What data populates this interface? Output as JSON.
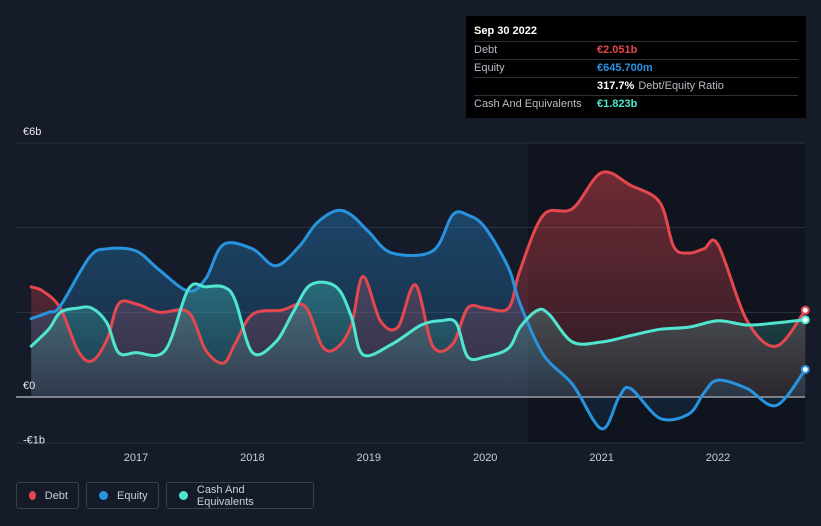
{
  "chart_data": {
    "type": "area",
    "title": "",
    "xlabel": "",
    "ylabel": "",
    "ylim": [
      -1.3,
      6
    ],
    "xlim": [
      2016.1,
      2022.75
    ],
    "y_tick_labels": [
      {
        "value": 6,
        "label": "€6b"
      },
      {
        "value": 0,
        "label": "€0"
      },
      {
        "value": -1,
        "label": "-€1b"
      }
    ],
    "x_tick_labels": [
      {
        "value": 2017,
        "label": "2017"
      },
      {
        "value": 2018,
        "label": "2018"
      },
      {
        "value": 2019,
        "label": "2019"
      },
      {
        "value": 2020,
        "label": "2020"
      },
      {
        "value": 2021,
        "label": "2021"
      },
      {
        "value": 2022,
        "label": "2022"
      }
    ],
    "gridlines": [
      6,
      4,
      2,
      0
    ],
    "series": [
      {
        "name": "Debt",
        "color": "#e5474e",
        "x": [
          2016.1,
          2016.2,
          2016.35,
          2016.5,
          2016.62,
          2016.75,
          2016.85,
          2017.0,
          2017.2,
          2017.45,
          2017.6,
          2017.75,
          2017.85,
          2018.0,
          2018.25,
          2018.45,
          2018.6,
          2018.72,
          2018.85,
          2018.95,
          2019.1,
          2019.25,
          2019.4,
          2019.55,
          2019.72,
          2019.85,
          2020.0,
          2020.2,
          2020.3,
          2020.5,
          2020.75,
          2021.0,
          2021.25,
          2021.5,
          2021.62,
          2021.75,
          2021.88,
          2022.0,
          2022.25,
          2022.5,
          2022.75
        ],
        "values": [
          2.6,
          2.5,
          2.1,
          1.1,
          0.85,
          1.35,
          2.2,
          2.2,
          2.0,
          2.0,
          1.1,
          0.8,
          1.25,
          1.95,
          2.05,
          2.15,
          1.2,
          1.15,
          1.7,
          2.85,
          1.8,
          1.65,
          2.65,
          1.2,
          1.25,
          2.1,
          2.1,
          2.1,
          3.0,
          4.3,
          4.45,
          5.3,
          5.0,
          4.6,
          3.55,
          3.4,
          3.5,
          3.6,
          1.8,
          1.2,
          2.05
        ]
      },
      {
        "name": "Equity",
        "color": "#2894e0",
        "x": [
          2016.1,
          2016.25,
          2016.35,
          2016.6,
          2016.75,
          2017.0,
          2017.2,
          2017.45,
          2017.6,
          2017.75,
          2018.0,
          2018.2,
          2018.4,
          2018.55,
          2018.72,
          2018.85,
          2019.0,
          2019.2,
          2019.55,
          2019.72,
          2019.85,
          2020.0,
          2020.2,
          2020.3,
          2020.5,
          2020.75,
          2021.0,
          2021.15,
          2021.25,
          2021.5,
          2021.75,
          2021.88,
          2022.0,
          2022.25,
          2022.5,
          2022.75
        ],
        "values": [
          1.85,
          2.0,
          2.15,
          3.3,
          3.5,
          3.45,
          3.0,
          2.5,
          2.8,
          3.6,
          3.5,
          3.1,
          3.55,
          4.1,
          4.4,
          4.3,
          3.9,
          3.4,
          3.45,
          4.3,
          4.3,
          4.0,
          3.05,
          2.2,
          1.0,
          0.3,
          -0.75,
          0.0,
          0.2,
          -0.5,
          -0.4,
          0.1,
          0.4,
          0.2,
          -0.2,
          0.65
        ]
      },
      {
        "name": "Cash And Equivalents",
        "color": "#4fe5cf",
        "x": [
          2016.1,
          2016.25,
          2016.35,
          2016.5,
          2016.62,
          2016.75,
          2016.85,
          2017.0,
          2017.25,
          2017.45,
          2017.6,
          2017.75,
          2017.85,
          2018.0,
          2018.2,
          2018.35,
          2018.5,
          2018.72,
          2018.85,
          2018.95,
          2019.2,
          2019.45,
          2019.62,
          2019.75,
          2019.85,
          2020.0,
          2020.2,
          2020.3,
          2020.45,
          2020.55,
          2020.75,
          2021.0,
          2021.25,
          2021.5,
          2021.75,
          2022.0,
          2022.25,
          2022.5,
          2022.75
        ],
        "values": [
          1.2,
          1.6,
          2.0,
          2.1,
          2.1,
          1.75,
          1.05,
          1.05,
          1.1,
          2.55,
          2.6,
          2.6,
          2.3,
          1.05,
          1.3,
          2.0,
          2.65,
          2.6,
          1.9,
          1.0,
          1.25,
          1.7,
          1.8,
          1.75,
          0.95,
          0.95,
          1.15,
          1.65,
          2.05,
          1.95,
          1.3,
          1.3,
          1.45,
          1.6,
          1.65,
          1.8,
          1.7,
          1.75,
          1.823
        ]
      }
    ]
  },
  "tooltip": {
    "date": "Sep 30 2022",
    "debt_label": "Debt",
    "debt_value": "€2.051b",
    "equity_label": "Equity",
    "equity_value": "€645.700m",
    "ratio_value": "317.7%",
    "ratio_label": "Debt/Equity Ratio",
    "cash_label": "Cash And Equivalents",
    "cash_value": "€1.823b"
  },
  "legend": {
    "debt": "Debt",
    "equity": "Equity",
    "cash": "Cash And Equivalents"
  },
  "colors": {
    "debt": "#e5474e",
    "equity": "#2894e0",
    "cash": "#4fe5cf",
    "background": "#151b28",
    "forecast_bg": "#0f141f"
  }
}
